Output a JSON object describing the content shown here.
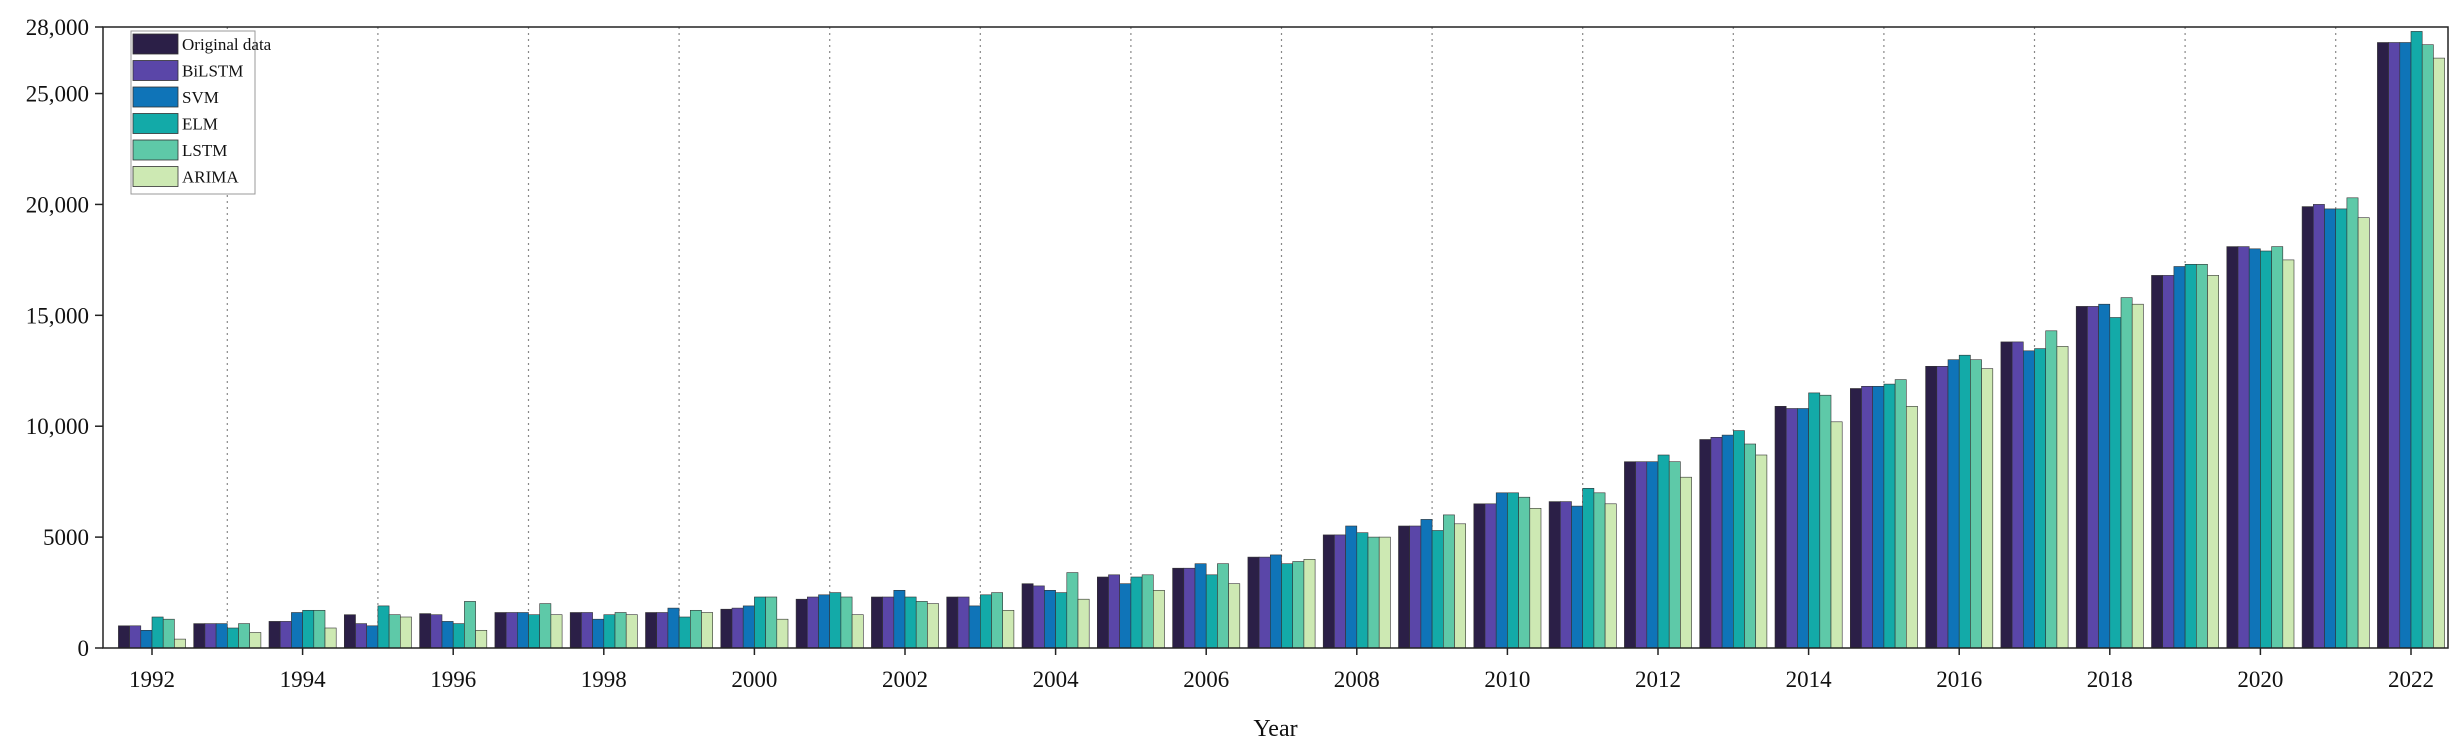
{
  "chart_data": {
    "type": "bar",
    "title": "",
    "xlabel": "Year",
    "ylabel": "",
    "ylim": [
      0,
      28000
    ],
    "yticks": [
      0,
      5000,
      10000,
      15000,
      20000,
      25000,
      28000
    ],
    "ytick_labels": [
      "0",
      "5000",
      "10,000",
      "15,000",
      "20,000",
      "25,000",
      "28,000"
    ],
    "xtick_labels": [
      "1992",
      "1994",
      "1996",
      "1998",
      "2000",
      "2002",
      "2004",
      "2006",
      "2008",
      "2010",
      "2012",
      "2014",
      "2016",
      "2018",
      "2020",
      "2022"
    ],
    "vertical_gridlines": "dotted, between every second year",
    "legend_position": "top-left",
    "categories": [
      "1992",
      "1993",
      "1994",
      "1995",
      "1996",
      "1997",
      "1998",
      "1999",
      "2000",
      "2001",
      "2002",
      "2003",
      "2004",
      "2005",
      "2006",
      "2007",
      "2008",
      "2009",
      "2010",
      "2011",
      "2012",
      "2013",
      "2014",
      "2015",
      "2016",
      "2017",
      "2018",
      "2019",
      "2020",
      "2021",
      "2022"
    ],
    "series": [
      {
        "name": "Original data",
        "color": "#2b1f47",
        "values": [
          1000,
          1100,
          1200,
          1500,
          1550,
          1600,
          1600,
          1600,
          1750,
          2200,
          2300,
          2300,
          2900,
          3200,
          3600,
          4100,
          5100,
          5500,
          6500,
          6600,
          8400,
          9400,
          10900,
          11700,
          12700,
          13800,
          15400,
          16800,
          18100,
          19900,
          27300
        ]
      },
      {
        "name": "BiLSTM",
        "color": "#5a46a8",
        "values": [
          1000,
          1100,
          1200,
          1100,
          1500,
          1600,
          1600,
          1600,
          1800,
          2300,
          2300,
          2300,
          2800,
          3300,
          3600,
          4100,
          5100,
          5500,
          6500,
          6600,
          8400,
          9500,
          10800,
          11800,
          12700,
          13800,
          15400,
          16800,
          18100,
          20000,
          27300
        ]
      },
      {
        "name": "SVM",
        "color": "#0f74b8",
        "values": [
          800,
          1100,
          1600,
          1000,
          1200,
          1600,
          1300,
          1800,
          1900,
          2400,
          2600,
          1900,
          2600,
          2900,
          3800,
          4200,
          5500,
          5800,
          7000,
          6400,
          8400,
          9600,
          10800,
          11800,
          13000,
          13400,
          15500,
          17200,
          18000,
          19800,
          27300
        ]
      },
      {
        "name": "ELM",
        "color": "#13aaa8",
        "values": [
          1400,
          900,
          1700,
          1900,
          1100,
          1500,
          1500,
          1400,
          2300,
          2500,
          2300,
          2400,
          2500,
          3200,
          3300,
          3800,
          5200,
          5300,
          7000,
          7200,
          8700,
          9800,
          11500,
          11900,
          13200,
          13500,
          14900,
          17300,
          17900,
          19800,
          27800
        ]
      },
      {
        "name": "LSTM",
        "color": "#5ec9a8",
        "values": [
          1300,
          1100,
          1700,
          1500,
          2100,
          2000,
          1600,
          1700,
          2300,
          2300,
          2100,
          2500,
          3400,
          3300,
          3800,
          3900,
          5000,
          6000,
          6800,
          7000,
          8400,
          9200,
          11400,
          12100,
          13000,
          14300,
          15800,
          17300,
          18100,
          20300,
          27200
        ]
      },
      {
        "name": "ARIMA",
        "color": "#cde9b3",
        "values": [
          400,
          700,
          900,
          1400,
          800,
          1500,
          1500,
          1600,
          1300,
          1500,
          2000,
          1700,
          2200,
          2600,
          2900,
          4000,
          5000,
          5600,
          6300,
          6500,
          7700,
          8700,
          10200,
          10900,
          12600,
          13600,
          15500,
          16800,
          17500,
          19400,
          26600
        ]
      }
    ]
  }
}
